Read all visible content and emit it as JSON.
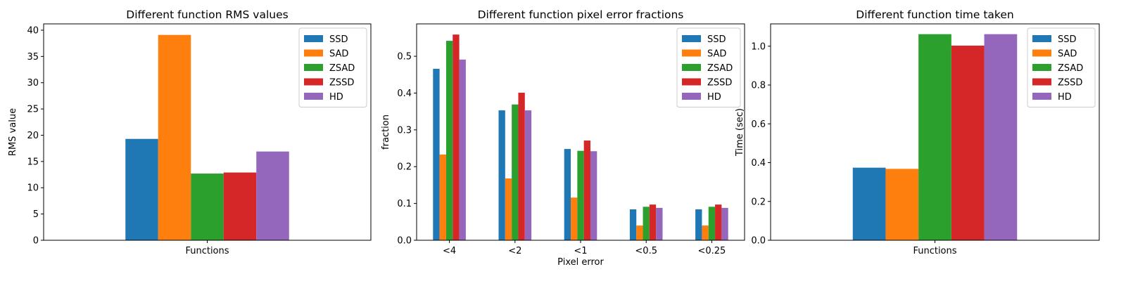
{
  "chart_data": [
    {
      "type": "bar",
      "title": "Different function RMS values",
      "xlabel": "",
      "ylabel": "RMS value",
      "categories": [
        "Functions"
      ],
      "ylim": [
        0,
        41.2
      ],
      "yticks": [
        0,
        5,
        10,
        15,
        20,
        25,
        30,
        35,
        40
      ],
      "legend": "top-right",
      "grid": false,
      "series": [
        {
          "name": "SSD",
          "values": [
            19.3
          ]
        },
        {
          "name": "SAD",
          "values": [
            39.1
          ]
        },
        {
          "name": "ZSAD",
          "values": [
            12.7
          ]
        },
        {
          "name": "ZSSD",
          "values": [
            12.9
          ]
        },
        {
          "name": "HD",
          "values": [
            16.9
          ]
        }
      ]
    },
    {
      "type": "bar",
      "title": "Different function pixel error fractions",
      "xlabel": "Pixel error",
      "ylabel": "fraction",
      "categories": [
        "<4",
        "<2",
        "<1",
        "<0.5",
        "<0.25"
      ],
      "ylim": [
        0,
        0.588
      ],
      "yticks": [
        0.0,
        0.1,
        0.2,
        0.3,
        0.4,
        0.5
      ],
      "legend": "top-right",
      "grid": false,
      "series": [
        {
          "name": "SSD",
          "values": [
            0.466,
            0.353,
            0.248,
            0.084,
            0.084
          ]
        },
        {
          "name": "SAD",
          "values": [
            0.233,
            0.168,
            0.116,
            0.04,
            0.04
          ]
        },
        {
          "name": "ZSAD",
          "values": [
            0.542,
            0.369,
            0.243,
            0.091,
            0.091
          ]
        },
        {
          "name": "ZSSD",
          "values": [
            0.559,
            0.401,
            0.271,
            0.097,
            0.097
          ]
        },
        {
          "name": "HD",
          "values": [
            0.491,
            0.353,
            0.242,
            0.088,
            0.088
          ]
        }
      ]
    },
    {
      "type": "bar",
      "title": "Different function time taken",
      "xlabel": "",
      "ylabel": "Time (sec)",
      "categories": [
        "Functions"
      ],
      "ylim": [
        0,
        1.115
      ],
      "yticks": [
        0.0,
        0.2,
        0.4,
        0.6,
        0.8,
        1.0
      ],
      "legend": "top-right",
      "grid": false,
      "series": [
        {
          "name": "SSD",
          "values": [
            0.374
          ]
        },
        {
          "name": "SAD",
          "values": [
            0.368
          ]
        },
        {
          "name": "ZSAD",
          "values": [
            1.062
          ]
        },
        {
          "name": "ZSSD",
          "values": [
            1.003
          ]
        },
        {
          "name": "HD",
          "values": [
            1.062
          ]
        }
      ]
    }
  ],
  "colors": [
    "#1f77b4",
    "#ff7f0e",
    "#2ca02c",
    "#d62728",
    "#9467bd"
  ]
}
